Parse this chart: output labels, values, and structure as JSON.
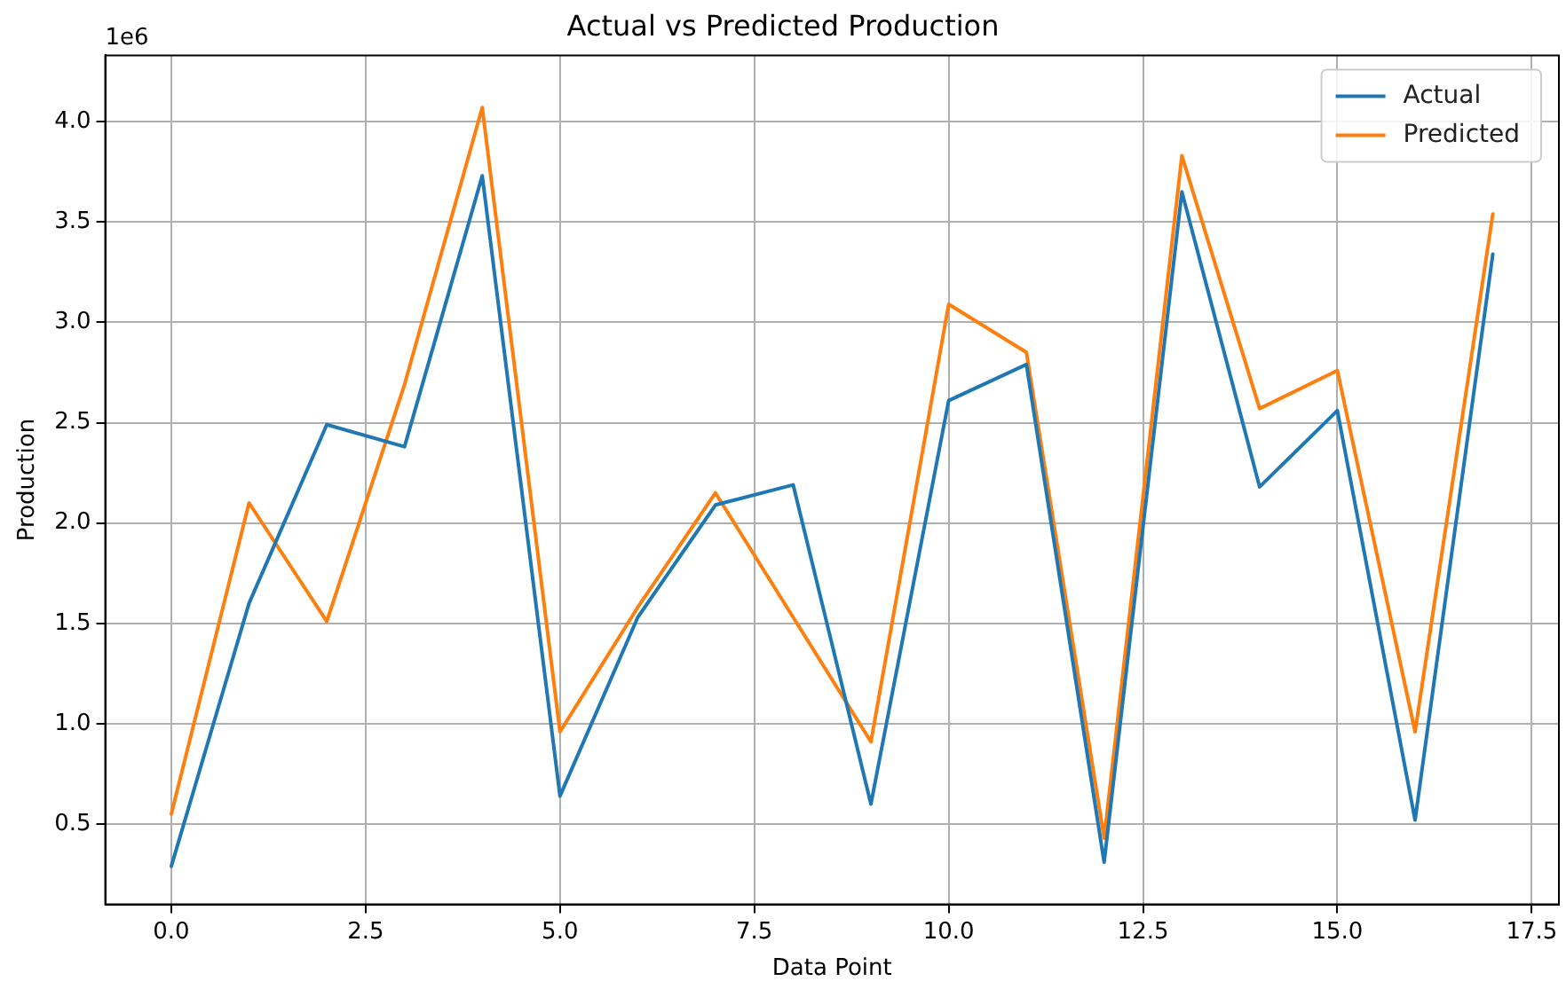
{
  "chart_data": {
    "type": "line",
    "title": "Actual vs Predicted Production",
    "xlabel": "Data Point",
    "ylabel": "Production",
    "x": [
      0,
      1,
      2,
      3,
      4,
      5,
      6,
      7,
      8,
      9,
      10,
      11,
      12,
      13,
      14,
      15,
      16,
      17
    ],
    "series": [
      {
        "name": "Actual",
        "color": "#1f77b4",
        "values": [
          0.29,
          1.6,
          2.49,
          2.38,
          3.73,
          0.64,
          1.53,
          2.09,
          2.19,
          0.6,
          2.61,
          2.79,
          0.31,
          3.65,
          2.18,
          2.56,
          0.52,
          3.34
        ]
      },
      {
        "name": "Predicted",
        "color": "#ff7f0e",
        "values": [
          0.55,
          2.1,
          1.51,
          2.69,
          4.07,
          0.96,
          1.58,
          2.15,
          1.53,
          0.91,
          3.09,
          2.85,
          0.43,
          3.83,
          2.57,
          2.76,
          0.96,
          3.54
        ]
      }
    ],
    "xlim": [
      -0.85,
      17.85
    ],
    "xticks": [
      {
        "value": 0,
        "label": "0.0"
      },
      {
        "value": 2.5,
        "label": "2.5"
      },
      {
        "value": 5,
        "label": "5.0"
      },
      {
        "value": 7.5,
        "label": "7.5"
      },
      {
        "value": 10,
        "label": "10.0"
      },
      {
        "value": 12.5,
        "label": "12.5"
      },
      {
        "value": 15,
        "label": "15.0"
      },
      {
        "value": 17.5,
        "label": "17.5"
      }
    ],
    "ylim": [
      0.1,
      4.33
    ],
    "yticks": [
      {
        "value": 0.5,
        "label": "0.5"
      },
      {
        "value": 1,
        "label": "1.0"
      },
      {
        "value": 1.5,
        "label": "1.5"
      },
      {
        "value": 2,
        "label": "2.0"
      },
      {
        "value": 2.5,
        "label": "2.5"
      },
      {
        "value": 3,
        "label": "3.0"
      },
      {
        "value": 3.5,
        "label": "3.5"
      },
      {
        "value": 4,
        "label": "4.0"
      }
    ],
    "annotations": [
      "1e6"
    ],
    "grid": true,
    "legend": "top right",
    "marker": "none",
    "line_style": "solid"
  }
}
